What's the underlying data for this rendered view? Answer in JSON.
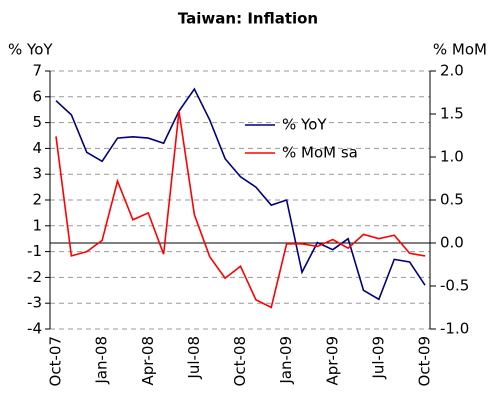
{
  "chart_data": {
    "type": "line",
    "title": "Taiwan: Inflation",
    "y_label": "% YoY",
    "y2_label": "% MoM",
    "categories": [
      "Oct-07",
      null,
      null,
      "Jan-08",
      null,
      null,
      "Apr-08",
      null,
      null,
      "Jul-08",
      null,
      null,
      "Oct-08",
      null,
      null,
      "Jan-09",
      null,
      null,
      "Apr-09",
      null,
      null,
      "Jul-09",
      null,
      null,
      "Oct-09"
    ],
    "series": [
      {
        "name": "% YoY",
        "color": "#000080",
        "values": [
          5.85,
          5.3,
          3.85,
          3.5,
          4.4,
          4.45,
          4.4,
          4.2,
          5.45,
          6.3,
          5.1,
          3.6,
          2.9,
          2.5,
          1.8,
          2.0,
          -1.8,
          -0.3,
          -0.85,
          0.0,
          -2.5,
          -2.85,
          -1.3,
          -1.4,
          -2.3
        ]
      },
      {
        "name": "% MoM sa",
        "color": "#ff0000",
        "axis": "y2",
        "values": [
          1.24,
          -0.15,
          -0.1,
          0.03,
          0.72,
          0.27,
          0.35,
          -0.13,
          1.53,
          0.33,
          -0.16,
          -0.41,
          -0.27,
          -0.66,
          -0.75,
          -0.01,
          -0.01,
          -0.04,
          0.04,
          -0.06,
          0.1,
          0.05,
          0.09,
          -0.12,
          -0.15
        ]
      }
    ],
    "ylim": [
      -4,
      7
    ],
    "yticks": [
      7,
      6,
      5,
      4,
      3,
      2,
      1,
      -1,
      -2,
      -3,
      -4
    ],
    "y2lim": [
      -1,
      2
    ],
    "y2ticks": [
      {
        "value": 2,
        "label": "2.0"
      },
      1.5,
      {
        "value": 1,
        "label": "1.0"
      },
      0.5,
      {
        "value": 0,
        "label": "0.0"
      },
      -0.5,
      {
        "value": -1,
        "label": "-1.0"
      }
    ],
    "grid": true
  }
}
